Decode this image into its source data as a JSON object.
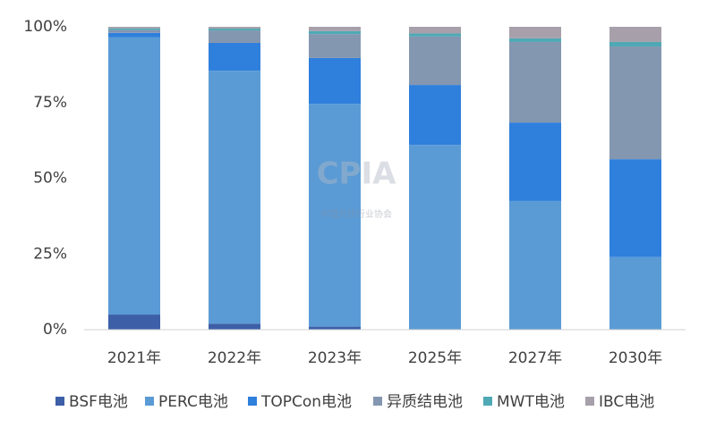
{
  "chart_data": {
    "type": "stacked_bar",
    "categories": [
      "2021年",
      "2022年",
      "2023年",
      "2025年",
      "2027年",
      "2030年"
    ],
    "series": [
      {
        "name": "BSF电池",
        "color": "#3d5fa8",
        "values": [
          5,
          2,
          1,
          0,
          0,
          0
        ]
      },
      {
        "name": "PERC电池",
        "color": "#5b9bd5",
        "values": [
          91.5,
          83.5,
          73.6,
          61,
          42.5,
          24
        ]
      },
      {
        "name": "TOPCon电池",
        "color": "#2f7fdc",
        "values": [
          1.5,
          9.2,
          15.1,
          19.8,
          25.9,
          32.3
        ]
      },
      {
        "name": "异质结电池",
        "color": "#8497b0",
        "values": [
          1,
          4.1,
          7.9,
          16,
          26.6,
          37.2
        ]
      },
      {
        "name": "MWT电池",
        "color": "#4fa9b5",
        "values": [
          0.5,
          0.6,
          1,
          1,
          1.2,
          1.5
        ]
      },
      {
        "name": "IBC电池",
        "color": "#a7a0aa",
        "values": [
          0.5,
          0.6,
          1.4,
          2.2,
          3.8,
          5
        ]
      }
    ],
    "ylim": [
      0,
      100
    ],
    "yticks": [
      {
        "value": 0,
        "label": "0%"
      },
      {
        "value": 25,
        "label": "25%"
      },
      {
        "value": 50,
        "label": "50%"
      },
      {
        "value": 75,
        "label": "75%"
      },
      {
        "value": 100,
        "label": "100%"
      }
    ],
    "grid": false,
    "legend": "bottom",
    "watermark": {
      "logo": "CPIA",
      "text": "中国光伏行业协会"
    }
  }
}
